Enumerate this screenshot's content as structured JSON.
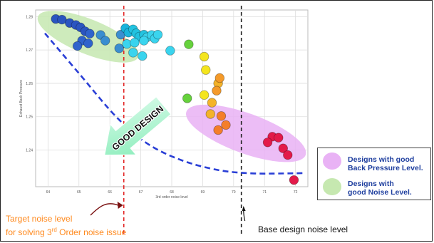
{
  "chart_data": {
    "type": "scatter",
    "title": "",
    "xlabel": "3rd order noise level",
    "ylabel": "Exhaust Back Pressure",
    "xlim": [
      63.6,
      72.4
    ],
    "ylim": [
      1.229,
      1.282
    ],
    "x_ticks": [
      "64",
      "65",
      "66",
      "67",
      "68",
      "69",
      "70",
      "71",
      "72"
    ],
    "x_tick_values": [
      64,
      65,
      66,
      67,
      68,
      69,
      70,
      71,
      72
    ],
    "y_ticks": [
      "1.28",
      "1.27",
      "1.26",
      "1.25",
      "1.24"
    ],
    "y_tick_values": [
      1.28,
      1.27,
      1.26,
      1.25,
      1.24
    ],
    "grid": true,
    "points": [
      {
        "x": 64.25,
        "y": 1.2793,
        "color": "#2a55c0"
      },
      {
        "x": 64.45,
        "y": 1.2791,
        "color": "#2a55c0"
      },
      {
        "x": 64.7,
        "y": 1.2781,
        "color": "#2a55c0"
      },
      {
        "x": 64.9,
        "y": 1.2775,
        "color": "#2a55c0"
      },
      {
        "x": 65.05,
        "y": 1.2768,
        "color": "#2a55c0"
      },
      {
        "x": 65.2,
        "y": 1.2756,
        "color": "#2a55c0"
      },
      {
        "x": 65.35,
        "y": 1.2749,
        "color": "#2f63cc"
      },
      {
        "x": 65.1,
        "y": 1.2728,
        "color": "#2f63cc"
      },
      {
        "x": 65.3,
        "y": 1.272,
        "color": "#2f63cc"
      },
      {
        "x": 64.95,
        "y": 1.2712,
        "color": "#2f63cc"
      },
      {
        "x": 65.7,
        "y": 1.2745,
        "color": "#3a8ed0"
      },
      {
        "x": 65.85,
        "y": 1.2728,
        "color": "#3a8ed0"
      },
      {
        "x": 66.35,
        "y": 1.2746,
        "color": "#3a8ed0"
      },
      {
        "x": 66.3,
        "y": 1.2705,
        "color": "#3a8ed0"
      },
      {
        "x": 66.5,
        "y": 1.2765,
        "color": "#19b4dc"
      },
      {
        "x": 66.6,
        "y": 1.2752,
        "color": "#19b4dc"
      },
      {
        "x": 66.75,
        "y": 1.2762,
        "color": "#22c3e0"
      },
      {
        "x": 66.85,
        "y": 1.275,
        "color": "#22c3e0"
      },
      {
        "x": 66.95,
        "y": 1.274,
        "color": "#22c3e0"
      },
      {
        "x": 67.1,
        "y": 1.2746,
        "color": "#22c3e0"
      },
      {
        "x": 67.2,
        "y": 1.2738,
        "color": "#3ad4ee"
      },
      {
        "x": 67.35,
        "y": 1.2745,
        "color": "#3ad4ee"
      },
      {
        "x": 67.1,
        "y": 1.2728,
        "color": "#3ad4ee"
      },
      {
        "x": 67.45,
        "y": 1.2734,
        "color": "#3ad4ee"
      },
      {
        "x": 67.55,
        "y": 1.2746,
        "color": "#3ad4ee"
      },
      {
        "x": 66.55,
        "y": 1.2718,
        "color": "#3ad4ee"
      },
      {
        "x": 66.8,
        "y": 1.2722,
        "color": "#3ad4ee"
      },
      {
        "x": 66.75,
        "y": 1.2692,
        "color": "#3ad4ee"
      },
      {
        "x": 67.05,
        "y": 1.2682,
        "color": "#3ad4ee"
      },
      {
        "x": 67.95,
        "y": 1.2698,
        "color": "#3ad4ee"
      },
      {
        "x": 68.55,
        "y": 1.2717,
        "color": "#66d23c"
      },
      {
        "x": 68.5,
        "y": 1.2555,
        "color": "#66d23c"
      },
      {
        "x": 69.05,
        "y": 1.268,
        "color": "#f4e51e"
      },
      {
        "x": 69.1,
        "y": 1.264,
        "color": "#f4e51e"
      },
      {
        "x": 69.05,
        "y": 1.2565,
        "color": "#f4e51e"
      },
      {
        "x": 69.5,
        "y": 1.26,
        "color": "#f4b32a"
      },
      {
        "x": 69.55,
        "y": 1.2616,
        "color": "#f49a2a"
      },
      {
        "x": 69.45,
        "y": 1.2578,
        "color": "#f49a2a"
      },
      {
        "x": 69.3,
        "y": 1.2542,
        "color": "#f4b32a"
      },
      {
        "x": 69.25,
        "y": 1.2508,
        "color": "#f4b32a"
      },
      {
        "x": 69.6,
        "y": 1.2502,
        "color": "#f47e2a"
      },
      {
        "x": 69.5,
        "y": 1.246,
        "color": "#f47e2a"
      },
      {
        "x": 69.75,
        "y": 1.2475,
        "color": "#f47e2a"
      },
      {
        "x": 71.25,
        "y": 1.244,
        "color": "#e31a4a"
      },
      {
        "x": 71.45,
        "y": 1.2437,
        "color": "#e31a4a"
      },
      {
        "x": 71.1,
        "y": 1.2423,
        "color": "#e31a4a"
      },
      {
        "x": 71.6,
        "y": 1.2405,
        "color": "#e31a4a"
      },
      {
        "x": 71.75,
        "y": 1.2385,
        "color": "#e31a4a"
      },
      {
        "x": 71.95,
        "y": 1.231,
        "color": "#e31a4a"
      }
    ],
    "trend_curve": {
      "x": [
        63.9,
        65.0,
        66.2,
        67.2,
        68.3,
        69.5,
        70.6,
        71.8,
        72.3
      ],
      "y": [
        1.275,
        1.263,
        1.25,
        1.242,
        1.237,
        1.234,
        1.233,
        1.233,
        1.2331
      ],
      "color": "#2a3fd6"
    },
    "reference_lines": [
      {
        "x": 66.45,
        "color": "#e22222"
      },
      {
        "x": 70.25,
        "color": "#222222"
      }
    ],
    "regions": [
      {
        "name": "Designs with good Noise Level.",
        "color": "#c6e8b0",
        "cx": 65.3,
        "cy": 1.274,
        "rx": 1.75,
        "ry": 0.0052,
        "rotate": 22
      },
      {
        "name": "Designs with good Back Pressure Level.",
        "color": "#e9b2f5",
        "cx": 70.4,
        "cy": 1.245,
        "rx": 2.05,
        "ry": 0.006,
        "rotate": 20
      }
    ],
    "arrow_label": "GOOD DESIGN",
    "arrow_color": "#9af0c4"
  },
  "annotations": {
    "target_line1": "Target noise level",
    "target_line2a": "for solving 3",
    "target_sup": "rd",
    "target_line2b": " Order noise issue",
    "base_label": "Base design noise level"
  },
  "legend": {
    "items": [
      {
        "line1": "Designs with good",
        "line2": "Back Pressure Level.",
        "color": "#e9b2f5"
      },
      {
        "line1": "Designs with",
        "line2": "good Noise Level.",
        "color": "#c6e8b0"
      }
    ]
  }
}
